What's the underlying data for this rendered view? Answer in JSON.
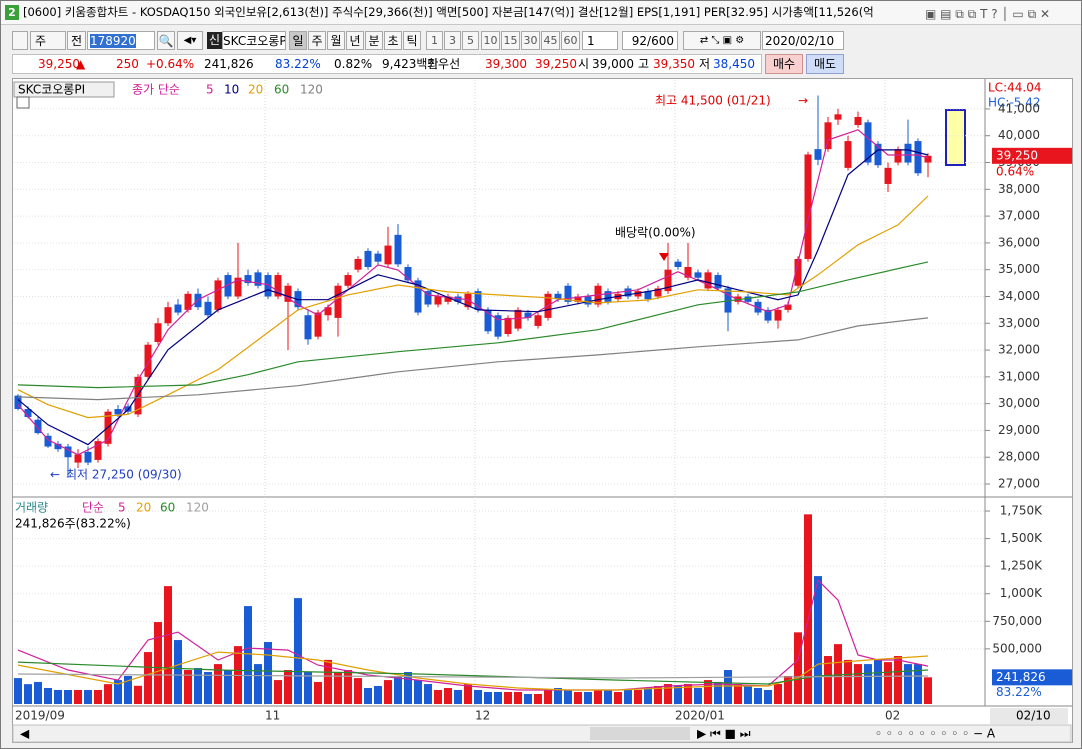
{
  "window": {
    "badge": "2",
    "title": "[0600] 키움종합차트 - KOSDAQ150 외국인보유[2,613(천)] 주식수[29,366(천)] 액면[500] 자본금[147(억)] 결산[12월] EPS[1,191] PER[32.95] 시가총액[11,526(억"
  },
  "toolbar": {
    "period_unit": "주",
    "mode": "전",
    "code": "178920",
    "badge": "신",
    "name": "SKC코오롱P",
    "periods": [
      "일",
      "주",
      "월",
      "년",
      "분",
      "초",
      "틱"
    ],
    "intervals": [
      "1",
      "3",
      "5",
      "10",
      "15",
      "30",
      "45",
      "60"
    ],
    "interval_input": "1",
    "count": "92/600",
    "date": "2020/02/10"
  },
  "quote": [
    {
      "text": "39,250",
      "color": "#e00000"
    },
    {
      "text": "▲",
      "color": "#e00000"
    },
    {
      "text": "250",
      "color": "#e00000"
    },
    {
      "text": "+0.64%",
      "color": "#e00000"
    },
    {
      "text": "241,826",
      "color": "#000000"
    },
    {
      "text": "83.22%",
      "color": "#0040e0"
    },
    {
      "text": "0.82%",
      "color": "#000000"
    },
    {
      "text": "9,423백만",
      "color": "#000000"
    },
    {
      "text": "최우선",
      "color": "#000000"
    },
    {
      "text": "39,300",
      "color": "#e00000"
    },
    {
      "text": "39,250",
      "color": "#e00000"
    },
    {
      "text": "시",
      "color": "#000000"
    },
    {
      "text": "39,000",
      "color": "#000000"
    },
    {
      "text": "고",
      "color": "#000000"
    },
    {
      "text": "39,350",
      "color": "#e00000"
    },
    {
      "text": "저",
      "color": "#000000"
    },
    {
      "text": "38,450",
      "color": "#0040e0"
    }
  ],
  "buttons": {
    "buy": "매수",
    "sell": "매도"
  },
  "chart_data": {
    "type": "candlestick",
    "stock_label": "SKC코오롱PI",
    "ma_legend_label": "종가 단순",
    "grid": true,
    "up_color": "#e8141e",
    "down_color": "#1a5cd6",
    "categories": [
      "2019/09",
      null,
      null,
      null,
      null,
      null,
      null,
      null,
      null,
      null,
      null,
      null,
      null,
      null,
      null,
      null,
      null,
      null,
      null,
      null,
      null,
      null,
      null,
      null,
      null,
      "11",
      null,
      null,
      null,
      null,
      null,
      null,
      null,
      null,
      null,
      null,
      null,
      null,
      null,
      null,
      null,
      null,
      null,
      null,
      null,
      null,
      "12",
      null,
      null,
      null,
      null,
      null,
      null,
      null,
      null,
      null,
      null,
      null,
      null,
      null,
      null,
      null,
      null,
      null,
      null,
      null,
      "2020/01",
      null,
      null,
      null,
      null,
      null,
      null,
      null,
      null,
      null,
      null,
      null,
      null,
      null,
      null,
      null,
      null,
      null,
      null,
      null,
      null,
      "02",
      null,
      null,
      null,
      null
    ],
    "open": [
      30300,
      29800,
      29400,
      28800,
      28500,
      28400,
      27800,
      28200,
      27900,
      28500,
      29800,
      29900,
      29600,
      31000,
      32300,
      33000,
      33700,
      33500,
      34100,
      33800,
      33500,
      34800,
      34000,
      34800,
      34900,
      34800,
      34000,
      33800,
      34200,
      33300,
      32500,
      33300,
      33200,
      34400,
      35000,
      35700,
      35600,
      35200,
      36300,
      35100,
      34600,
      34200,
      33700,
      33800,
      34000,
      33600,
      34200,
      33500,
      33300,
      32600,
      32800,
      33400,
      32900,
      33200,
      34100,
      34400,
      33800,
      34000,
      33700,
      34200,
      33900,
      34300,
      34000,
      34200,
      34000,
      34200,
      35300,
      34700,
      34900,
      34300,
      34800,
      34300,
      33800,
      34000,
      33800,
      33500,
      33100,
      33500,
      34400,
      35400,
      39500,
      39500,
      40600,
      38800,
      40400,
      40500,
      39700,
      38200,
      39000,
      39700,
      39800,
      39000
    ],
    "high": [
      30350,
      29900,
      29500,
      28900,
      28600,
      28500,
      28300,
      28400,
      28700,
      29800,
      29950,
      30000,
      31100,
      32300,
      33200,
      33800,
      33900,
      34200,
      34300,
      34000,
      34700,
      34900,
      36000,
      35000,
      35000,
      34900,
      34900,
      34500,
      34300,
      33500,
      33500,
      33700,
      34500,
      34900,
      35500,
      35800,
      35700,
      36600,
      36700,
      35200,
      34700,
      34300,
      34100,
      34100,
      34100,
      34200,
      34300,
      33600,
      33400,
      33300,
      33600,
      33500,
      33400,
      34200,
      34200,
      34500,
      34100,
      34100,
      34500,
      34300,
      34200,
      34400,
      34300,
      34300,
      34400,
      36000,
      35400,
      36000,
      35000,
      35000,
      34900,
      34400,
      34100,
      34100,
      33900,
      33600,
      33600,
      33800,
      35500,
      39400,
      41500,
      40700,
      41000,
      40000,
      40900,
      40600,
      39800,
      39000,
      39600,
      40600,
      39900,
      39350
    ],
    "low": [
      29750,
      29450,
      28850,
      28350,
      28200,
      27250,
      27600,
      27700,
      27800,
      28400,
      29500,
      29600,
      29500,
      30900,
      32200,
      32900,
      33300,
      33400,
      33500,
      33200,
      33400,
      33900,
      33900,
      34400,
      34300,
      33900,
      33900,
      32000,
      33500,
      32200,
      32400,
      33100,
      32500,
      34300,
      34900,
      35000,
      35200,
      35100,
      35100,
      34500,
      33300,
      33600,
      33600,
      33700,
      33700,
      33500,
      33400,
      32600,
      32400,
      32500,
      32700,
      33100,
      32800,
      33100,
      33800,
      33700,
      33700,
      33600,
      33600,
      33700,
      33800,
      33900,
      33900,
      33800,
      33900,
      34100,
      35000,
      34600,
      34600,
      34200,
      34200,
      32700,
      33700,
      33700,
      33300,
      33000,
      32800,
      33400,
      34300,
      35300,
      38900,
      39400,
      40400,
      38700,
      40300,
      38900,
      38800,
      37900,
      38900,
      38900,
      38500,
      38450
    ],
    "close": [
      29800,
      29500,
      28900,
      28400,
      28300,
      28000,
      28100,
      27800,
      28600,
      29700,
      29600,
      29700,
      31000,
      32200,
      33000,
      33600,
      33400,
      34100,
      33600,
      33300,
      34600,
      34000,
      34700,
      34500,
      34400,
      34000,
      34800,
      34400,
      33600,
      32400,
      33400,
      33600,
      34400,
      34800,
      35400,
      35100,
      35300,
      35900,
      35200,
      34600,
      33400,
      33700,
      34000,
      34000,
      33800,
      34100,
      33500,
      32700,
      32500,
      33200,
      33500,
      33200,
      33300,
      34100,
      33900,
      33800,
      34000,
      33700,
      34400,
      33800,
      34100,
      34000,
      34200,
      33900,
      34300,
      35000,
      35100,
      35100,
      34700,
      34900,
      34300,
      33400,
      34000,
      33800,
      33400,
      33100,
      33500,
      33700,
      35400,
      39300,
      39100,
      40500,
      40800,
      39800,
      40700,
      39000,
      38900,
      38800,
      39500,
      39000,
      38600,
      39250
    ],
    "ylim": [
      26590,
      42080
    ],
    "yticks": [
      {
        "value": 27000,
        "label": "27,000"
      },
      {
        "value": 28000,
        "label": "28,000"
      },
      {
        "value": 29000,
        "label": "29,000"
      },
      {
        "value": 30000,
        "label": "30,000"
      },
      {
        "value": 31000,
        "label": "31,000"
      },
      {
        "value": 32000,
        "label": "32,000"
      },
      {
        "value": 33000,
        "label": "33,000"
      },
      {
        "value": 34000,
        "label": "34,000"
      },
      {
        "value": 35000,
        "label": "35,000"
      },
      {
        "value": 36000,
        "label": "36,000"
      },
      {
        "value": 37000,
        "label": "37,000"
      },
      {
        "value": 38000,
        "label": "38,000"
      },
      {
        "value": 39000,
        "label": "39,000"
      },
      {
        "value": 40000,
        "label": "40,000"
      },
      {
        "value": 41000,
        "label": "41,000"
      }
    ],
    "ma": [
      {
        "name": "5",
        "color": "#d0209a",
        "x": [
          0,
          3,
          6,
          9,
          12,
          15,
          18,
          22,
          25,
          28,
          30,
          33,
          36,
          38,
          41,
          45,
          48,
          51,
          54,
          58,
          62,
          66,
          69,
          72,
          75,
          77,
          79,
          81,
          84,
          87,
          90,
          91
        ],
        "values": [
          29960,
          28650,
          28090,
          28650,
          30890,
          32760,
          33880,
          34620,
          34440,
          33690,
          33310,
          34250,
          35180,
          34990,
          34060,
          33880,
          33130,
          33210,
          33880,
          34060,
          34250,
          34920,
          34440,
          33880,
          33430,
          33690,
          36860,
          39840,
          40220,
          39280,
          39280,
          39170
        ]
      },
      {
        "name": "10",
        "color": "#000080",
        "x": [
          0,
          3,
          7,
          11,
          15,
          20,
          25,
          28,
          31,
          36,
          40,
          46,
          52,
          58,
          64,
          68,
          72,
          76,
          78,
          80,
          83,
          86,
          89,
          91
        ],
        "values": [
          30150,
          29210,
          28470,
          29770,
          32010,
          33500,
          34250,
          33880,
          33880,
          34810,
          34430,
          33500,
          33430,
          33880,
          34250,
          34620,
          34250,
          33880,
          34060,
          35740,
          38540,
          39470,
          39470,
          39280
        ]
      },
      {
        "name": "20",
        "color": "#e0a000",
        "x": [
          0,
          3,
          7,
          11,
          15,
          20,
          24,
          28,
          33,
          38,
          43,
          48,
          53,
          58,
          63,
          68,
          73,
          77,
          80,
          84,
          88,
          91
        ],
        "values": [
          30520,
          29960,
          29480,
          29600,
          30330,
          31270,
          32380,
          33500,
          34060,
          34430,
          34170,
          34060,
          33950,
          33760,
          33870,
          34250,
          34170,
          34060,
          34810,
          35930,
          36670,
          37750
        ]
      },
      {
        "name": "60",
        "color": "#2a8a2a",
        "x": [
          0,
          8,
          18,
          23,
          28,
          38,
          48,
          58,
          68,
          78,
          83,
          91
        ],
        "values": [
          30700,
          30600,
          30700,
          31080,
          31560,
          31940,
          32270,
          32760,
          33690,
          34170,
          34620,
          35290
        ]
      },
      {
        "name": "120",
        "color": "#808080",
        "x": [
          0,
          8,
          18,
          28,
          38,
          48,
          58,
          68,
          78,
          84,
          91
        ],
        "values": [
          30250,
          30150,
          30330,
          30670,
          31190,
          31560,
          31820,
          32120,
          32380,
          32900,
          33200
        ]
      }
    ],
    "annotations": {
      "high_label": "최고 41,500 (01/21)",
      "low_label": "최저 27,250 (09/30)",
      "event_label": "배당락(0.00%)"
    },
    "lc_label": "LC:44.04",
    "hc_label": "HC:-5.42",
    "last_price_label": "39,250",
    "last_change_label": "0.64%",
    "cursor_date": "02/10",
    "volume": {
      "label": "거래량",
      "ma_legend_label": "단순",
      "info": "241,826주(83.22%)",
      "last_label": "241,826",
      "last_ratio_label": "83.22%",
      "values": [
        235000,
        180000,
        200000,
        145000,
        127000,
        127000,
        127000,
        127000,
        127000,
        180000,
        217000,
        254000,
        165000,
        471000,
        743000,
        1069000,
        580000,
        308000,
        326000,
        290000,
        362000,
        308000,
        525000,
        888000,
        362000,
        562000,
        217000,
        308000,
        960000,
        290000,
        200000,
        400000,
        290000,
        308000,
        235000,
        145000,
        163000,
        217000,
        254000,
        290000,
        217000,
        181000,
        127000,
        145000,
        127000,
        181000,
        127000,
        109000,
        109000,
        109000,
        109000,
        91000,
        91000,
        127000,
        145000,
        127000,
        109000,
        109000,
        127000,
        127000,
        109000,
        127000,
        127000,
        145000,
        163000,
        181000,
        163000,
        181000,
        145000,
        217000,
        200000,
        308000,
        181000,
        163000,
        145000,
        127000,
        181000,
        254000,
        650000,
        1720000,
        1160000,
        435000,
        543000,
        400000,
        362000,
        362000,
        400000,
        380000,
        435000,
        362000,
        362000,
        241826
      ],
      "ylim": [
        0,
        1850000
      ],
      "yticks": [
        {
          "value": 500000,
          "label": "500,000"
        },
        {
          "value": 750000,
          "label": "750,000"
        },
        {
          "value": 1000000,
          "label": "1,000K"
        },
        {
          "value": 1250000,
          "label": "1,250K"
        },
        {
          "value": 1500000,
          "label": "1,500K"
        },
        {
          "value": 1750000,
          "label": "1,750K"
        }
      ],
      "ma": [
        {
          "name": "5",
          "color": "#d0209a",
          "x": [
            0,
            5,
            10,
            13,
            16,
            20,
            23,
            27,
            30,
            35,
            40,
            45,
            50,
            55,
            60,
            65,
            70,
            75,
            78,
            80,
            82,
            84,
            86,
            88,
            91
          ],
          "values": [
            489000,
            308000,
            217000,
            580000,
            652000,
            399000,
            507000,
            489000,
            353000,
            263000,
            217000,
            163000,
            127000,
            127000,
            127000,
            163000,
            181000,
            163000,
            399000,
            1123000,
            942000,
            444000,
            399000,
            399000,
            344000
          ]
        },
        {
          "name": "20",
          "color": "#e0a000",
          "x": [
            0,
            10,
            15,
            20,
            25,
            30,
            35,
            40,
            45,
            50,
            55,
            60,
            65,
            70,
            75,
            78,
            80,
            85,
            91
          ],
          "values": [
            353000,
            181000,
            326000,
            471000,
            444000,
            399000,
            308000,
            236000,
            181000,
            145000,
            127000,
            127000,
            145000,
            163000,
            163000,
            236000,
            362000,
            399000,
            435000
          ]
        },
        {
          "name": "60",
          "color": "#2a8a2a",
          "x": [
            0,
            20,
            40,
            60,
            75,
            80,
            91
          ],
          "values": [
            380000,
            308000,
            272000,
            217000,
            181000,
            254000,
            308000
          ]
        },
        {
          "name": "120",
          "color": "#a0a0a0",
          "x": [
            0,
            30,
            60,
            91
          ],
          "values": [
            272000,
            254000,
            236000,
            254000
          ]
        }
      ]
    }
  }
}
